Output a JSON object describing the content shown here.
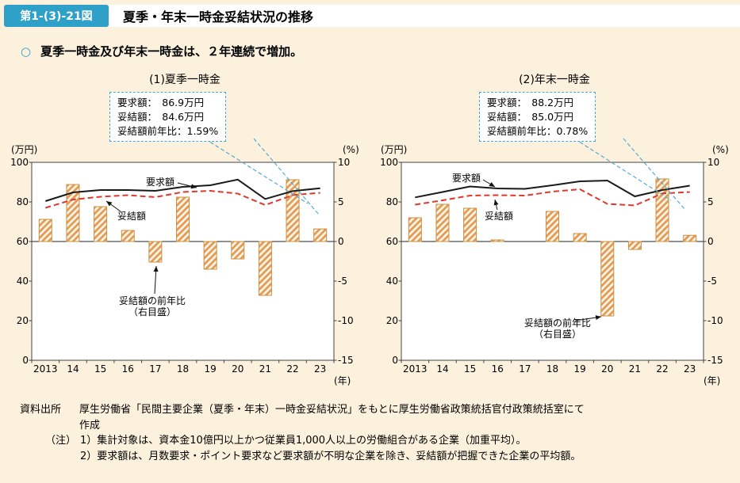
{
  "header": {
    "figure_label": "第1-(3)-21図",
    "title": "夏季・年末一時金妥結状況の推移"
  },
  "lead": {
    "bullet": "○",
    "text": "夏季一時金及び年末一時金は、２年連続で増加。"
  },
  "colors": {
    "accent_blue": "#2FA0C8",
    "callout_border": "#4AA6D4",
    "leader_blue": "#58A9D4",
    "request_black": "#1a1a1a",
    "settled_red": "#E0382C",
    "bar_stripe": "#E49B51",
    "bar_stroke": "#C8903F",
    "page_bg": "#FBF1DC"
  },
  "chart_data": [
    {
      "type": "line-bar-combo",
      "title": "(1)夏季一時金",
      "categories": [
        "2013",
        "14",
        "15",
        "16",
        "17",
        "18",
        "19",
        "20",
        "21",
        "22",
        "23"
      ],
      "x_unit": "(年)",
      "left_axis": {
        "unit": "(万円)",
        "min": 0,
        "max": 100,
        "ticks": [
          100,
          80,
          60,
          40,
          20,
          0
        ]
      },
      "right_axis": {
        "unit": "(%)",
        "min": -15,
        "max": 10,
        "ticks": [
          10,
          5,
          0,
          -5,
          -10,
          -15
        ]
      },
      "series": [
        {
          "name": "要求額",
          "type": "line",
          "style": "solid",
          "values": [
            80.4,
            84.8,
            86.0,
            86.0,
            85.6,
            87.6,
            88.4,
            91.3,
            81.5,
            85.5,
            86.9
          ]
        },
        {
          "name": "妥結額",
          "type": "line",
          "style": "dashed",
          "values": [
            77.0,
            81.2,
            82.6,
            83.4,
            82.4,
            85.0,
            85.6,
            84.2,
            78.4,
            83.5,
            84.6
          ]
        },
        {
          "name": "妥結額の前年比（右目盛）",
          "type": "bar",
          "axis": "right",
          "values": [
            2.8,
            7.2,
            4.4,
            1.4,
            -2.6,
            5.6,
            -3.5,
            -2.2,
            -6.8,
            7.8,
            1.59
          ]
        }
      ],
      "annotations": {
        "request_label": "要求額",
        "settled_label": "妥結額",
        "bar_label_lines": [
          "妥結額の前年比",
          "（右目盛）"
        ]
      },
      "callout": {
        "lines": [
          "要求額：　86.9万円",
          "妥結額：　84.6万円",
          "妥結額前年比：1.59%"
        ]
      }
    },
    {
      "type": "line-bar-combo",
      "title": "(2)年末一時金",
      "categories": [
        "2013",
        "14",
        "15",
        "16",
        "17",
        "18",
        "19",
        "20",
        "21",
        "22",
        "23"
      ],
      "x_unit": "(年)",
      "left_axis": {
        "unit": "(万円)",
        "min": 0,
        "max": 100,
        "ticks": [
          100,
          80,
          60,
          40,
          20,
          0
        ]
      },
      "right_axis": {
        "unit": "(%)",
        "min": -15,
        "max": 10,
        "ticks": [
          10,
          5,
          0,
          -5,
          -10,
          -15
        ]
      },
      "series": [
        {
          "name": "要求額",
          "type": "line",
          "style": "solid",
          "values": [
            82.3,
            85.0,
            87.8,
            86.8,
            86.6,
            88.4,
            90.4,
            90.8,
            82.8,
            86.0,
            88.2
          ]
        },
        {
          "name": "妥結額",
          "type": "line",
          "style": "dashed",
          "values": [
            78.6,
            80.8,
            83.2,
            83.4,
            83.2,
            85.2,
            86.4,
            79.0,
            78.2,
            84.3,
            85.0
          ]
        },
        {
          "name": "妥結額の前年比（右目盛）",
          "type": "bar",
          "axis": "right",
          "values": [
            3.0,
            4.7,
            4.2,
            0.2,
            0.0,
            3.8,
            1.0,
            -9.4,
            -1.0,
            7.9,
            0.78
          ]
        }
      ],
      "annotations": {
        "request_label": "要求額",
        "settled_label": "妥結額",
        "bar_label_lines": [
          "妥結額の前年比",
          "（右目盛）"
        ]
      },
      "callout": {
        "lines": [
          "要求額：　88.2万円",
          "妥結額：　85.0万円",
          "妥結額前年比：0.78%"
        ]
      }
    }
  ],
  "footer": {
    "source_label": "資料出所",
    "source_text": "厚生労働省「民間主要企業（夏季・年末）一時金妥結状況」をもとに厚生労働省政策統括官付政策統括室にて",
    "source_text2": "作成",
    "note_label": "（注）",
    "notes": [
      "1）集計対象は、資本金10億円以上かつ従業員1,000人以上の労働組合がある企業（加重平均）。",
      "2）要求額は、月数要求・ポイント要求など要求額が不明な企業を除き、妥結額が把握できた企業の平均額。"
    ]
  }
}
